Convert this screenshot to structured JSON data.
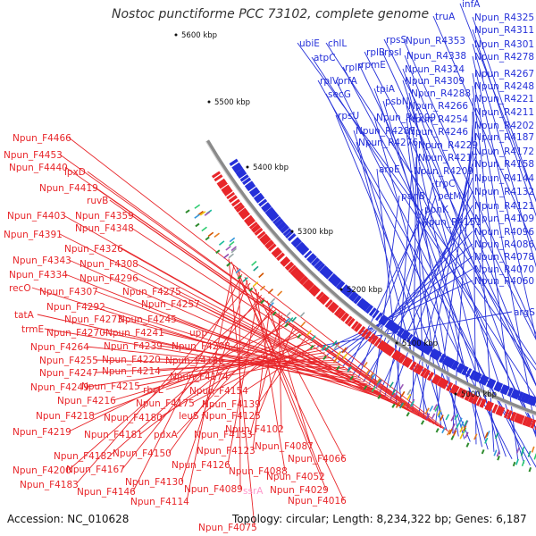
{
  "title": "Nostoc punctiforme PCC 73102, complete genome",
  "footer": {
    "accession": "Accession: NC_010628",
    "topology": "Topology: circular; Length: 8,234,322 bp; Genes: 6,187"
  },
  "colors": {
    "forward": "#e8262a",
    "reverse": "#2530d9",
    "backbone": "#8a8a8a",
    "rna": "#ff99cc",
    "ticks": "#2e8b2e"
  },
  "kbp_ticks": [
    "5600 kbp",
    "5500 kbp",
    "5400 kbp",
    "5300 kbp",
    "5200 kbp",
    "5100 kbp",
    "5000 kbp"
  ],
  "reverse_labels": [
    "infA",
    "truA",
    "Npun_R4325",
    "Npun_R4311",
    "ubiE",
    "chlL",
    "rpsS",
    "Npun_R4353",
    "Npun_R4301",
    "atpC",
    "rplB",
    "rpsI",
    "Npun_R4338",
    "Npun_R4278",
    "rplP",
    "rpmE",
    "Npun_R4324",
    "Npun_R4267",
    "rplV",
    "prfA",
    "Npun_R4309",
    "Npun_R4248",
    "secG",
    "tpiA",
    "Npun_R4288",
    "Npun_R4221",
    "psbN",
    "Npun_R4266",
    "Npun_R4211",
    "rpsU",
    "Npun_R4299",
    "Npun_R4254",
    "Npun_R4202",
    "Npun_R4287",
    "Npun_R4246",
    "Npun_R4187",
    "Npun_R4276",
    "Npun_R4229",
    "Npun_R4172",
    "Npun_R4217",
    "Npun_R4158",
    "aroE",
    "Npun_R4209",
    "Npun_R4144",
    "trpC",
    "Npun_R4132",
    "panB",
    "petM",
    "Npun_R4121",
    "ppnK",
    "Npun_R4109",
    "Npun_R4151",
    "Npun_R4096",
    "Npun_R4086",
    "Npun_R4078",
    "Npun_R4070",
    "Npun_R4060",
    "argS"
  ],
  "forward_labels": [
    "Npun_F4466",
    "Npun_F4453",
    "Npun_F4440",
    "lpxD",
    "Npun_F4419",
    "ruvB",
    "Npun_F4403",
    "Npun_F4359",
    "Npun_F4391",
    "Npun_F4348",
    "Npun_F4326",
    "Npun_F4343",
    "Npun_F4308",
    "Npun_F4334",
    "Npun_F4296",
    "recO",
    "Npun_F4307",
    "Npun_F4275",
    "Npun_F4292",
    "Npun_F4257",
    "tatA",
    "Npun_F4273",
    "Npun_F4245",
    "trmE",
    "Npun_F4270",
    "Npun_F4241",
    "upp",
    "Npun_F4264",
    "Npun_F4239",
    "Npun_F4208",
    "Npun_F4255",
    "Npun_F4220",
    "Npun_F4186",
    "Npun_F4247",
    "Npun_F4214",
    "Npun_F4174",
    "Npun_F4249",
    "Npun_F4215",
    "rbcL",
    "Npun_F4154",
    "Npun_F4216",
    "Npun_F4175",
    "Npun_F4139",
    "Npun_F4218",
    "Npun_F4180",
    "leuS",
    "Npun_F4125",
    "Npun_F4219",
    "Npun_F4181",
    "pdxA",
    "Npun_F4133",
    "Npun_F4102",
    "Npun_F4182",
    "Npun_F4150",
    "Npun_F4123",
    "Npun_F4087",
    "Npun_F4200",
    "Npun_F4167",
    "Npun_F4126",
    "Npun_F4088",
    "Npun_F4066",
    "Npun_F4183",
    "Npun_F4130",
    "Npun_F4052",
    "Npun_F4146",
    "Npun_F4089",
    "Npun_F4029",
    "Npun_F4114",
    "Npun_F4016",
    "Npun_F4075"
  ],
  "rna_labels": [
    "ssrA"
  ]
}
